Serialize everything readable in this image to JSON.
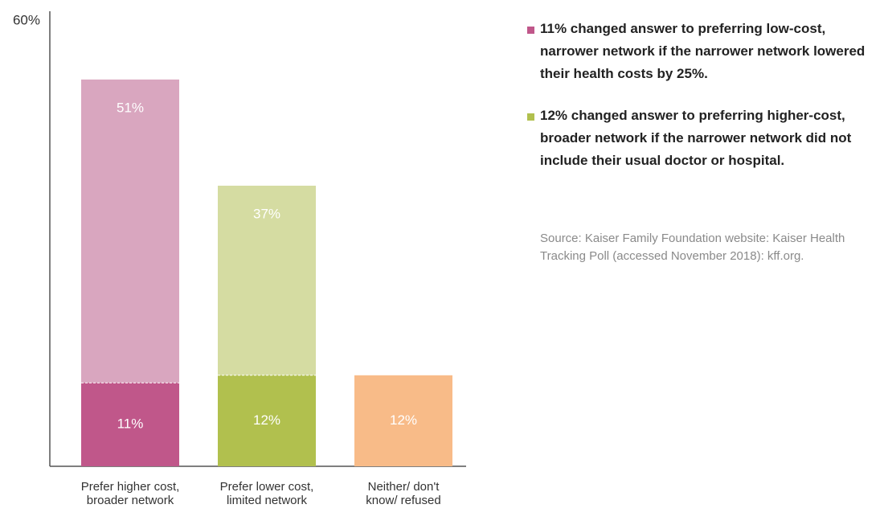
{
  "chart_data": {
    "type": "bar",
    "categories": [
      "Prefer higher cost, broader network",
      "Prefer lower cost, limited network",
      "Neither/ don't know/ refused"
    ],
    "series": [
      {
        "values": [
          51,
          37,
          12
        ],
        "value_labels": [
          "51%",
          "37%",
          "12%"
        ],
        "colors": [
          "#d9a6bf",
          "#d5dca2",
          "#f8bb88"
        ]
      },
      {
        "values": [
          11,
          12,
          null
        ],
        "value_labels": [
          "11%",
          "12%",
          null
        ],
        "colors": [
          "#c0578a",
          "#b1c04e",
          null
        ]
      }
    ],
    "ylim": [
      0,
      60
    ],
    "yticks": [
      {
        "value": 60,
        "label": "60%"
      }
    ],
    "notes": [
      {
        "text": "11% changed answer to preferring low-cost, narrower network if the narrower network lowered their health costs by 25%.",
        "color": "#c0578a"
      },
      {
        "text": "12% changed answer to preferring higher-cost, broader network if the narrower network did not include their usual doctor or hospital.",
        "color": "#b1c04e"
      }
    ],
    "source": "Source: Kaiser Family Foundation website: Kaiser Health Tracking Poll (accessed November 2018): kff.org."
  }
}
